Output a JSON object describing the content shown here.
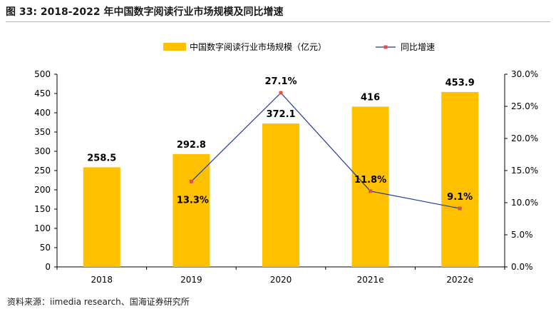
{
  "figure": {
    "title": "图 33:  2018-2022 年中国数字阅读行业市场规模及同比增速",
    "source": "资料来源：iimedia research、国海证券研究所"
  },
  "colors": {
    "bar": "#FFC000",
    "line": "#1F3A93",
    "marker": "#D9534F",
    "axis": "#000000"
  },
  "chart_data": {
    "type": "bar+line",
    "categories": [
      "2018",
      "2019",
      "2020",
      "2021e",
      "2022e"
    ],
    "series": [
      {
        "name": "中国数字阅读行业市场规模（亿元）",
        "type": "bar",
        "axis": "left",
        "values": [
          258.5,
          292.8,
          372.1,
          416,
          453.9
        ],
        "labels": [
          "258.5",
          "292.8",
          "372.1",
          "416",
          "453.9"
        ]
      },
      {
        "name": "同比增速",
        "type": "line",
        "axis": "right",
        "values": [
          null,
          13.3,
          27.1,
          11.8,
          9.1
        ],
        "labels": [
          "",
          "13.3%",
          "27.1%",
          "11.8%",
          "9.1%"
        ]
      }
    ],
    "y_left": {
      "range": [
        0,
        500
      ],
      "ticks": [
        "0",
        "50",
        "100",
        "150",
        "200",
        "250",
        "300",
        "350",
        "400",
        "450",
        "500"
      ]
    },
    "y_right": {
      "range": [
        0,
        30
      ],
      "ticks": [
        "0.0%",
        "5.0%",
        "10.0%",
        "15.0%",
        "20.0%",
        "25.0%",
        "30.0%"
      ]
    },
    "grid": false,
    "legend_position": "top-center"
  }
}
